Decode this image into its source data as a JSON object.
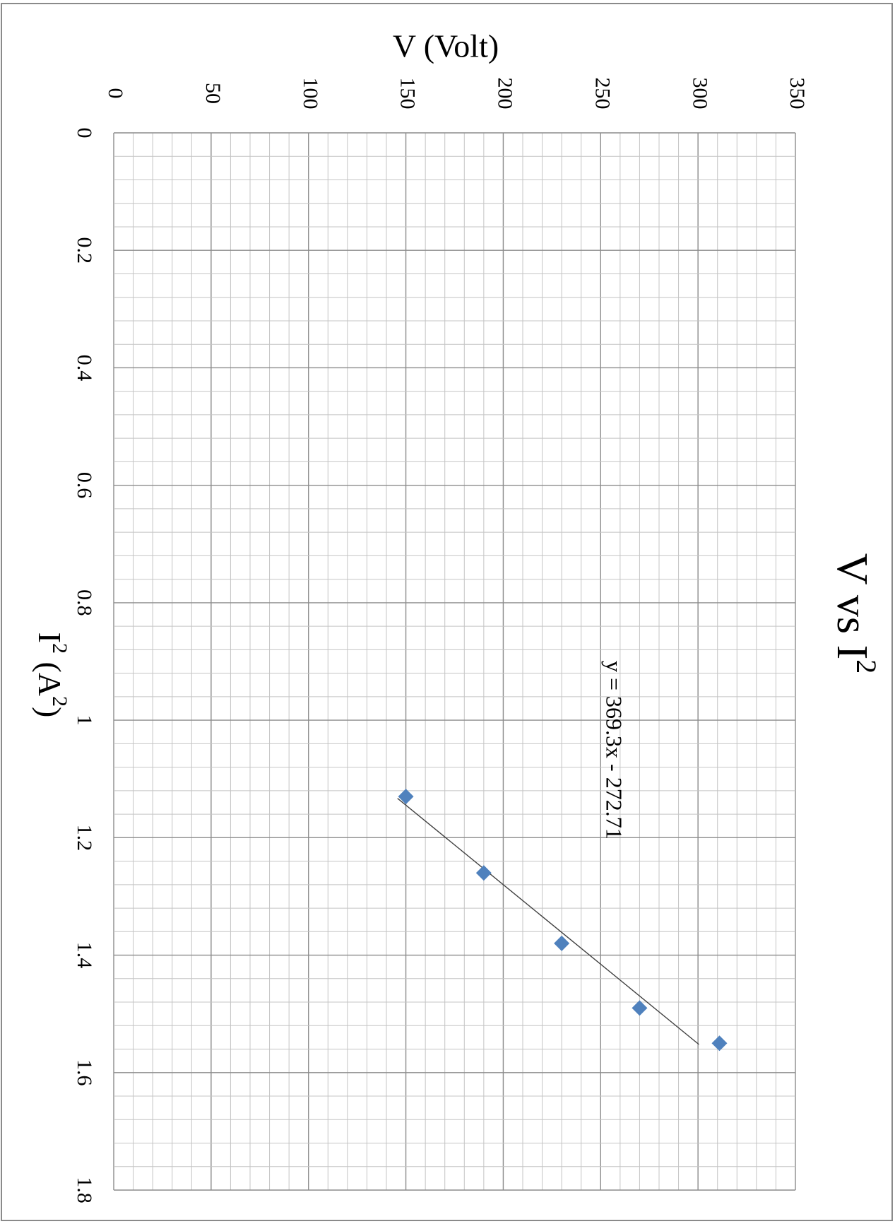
{
  "chart_data": {
    "type": "scatter",
    "title": "V vs I",
    "title_sup": "2",
    "xlabel_main": "I",
    "xlabel_sup1": "2",
    "xlabel_rest": " (A",
    "xlabel_sup2": "2",
    "xlabel_end": ")",
    "ylabel": "V (Volt)",
    "xlim": [
      0,
      1.8
    ],
    "ylim": [
      0,
      350
    ],
    "x_ticks": [
      "0",
      "0.2",
      "0.4",
      "0.6",
      "0.8",
      "1",
      "1.2",
      "1.4",
      "1.6",
      "1.8"
    ],
    "y_ticks": [
      "0",
      "50",
      "100",
      "150",
      "200",
      "250",
      "300",
      "350"
    ],
    "x_tick_values": [
      0,
      0.2,
      0.4,
      0.6,
      0.8,
      1.0,
      1.2,
      1.4,
      1.6,
      1.8
    ],
    "y_tick_values": [
      0,
      50,
      100,
      150,
      200,
      250,
      300,
      350
    ],
    "x_minor_step": 0.04,
    "y_minor_step": 10,
    "grid": true,
    "orientation": "rotated 90° clockwise",
    "series": [
      {
        "x": [
          1.13,
          1.26,
          1.38,
          1.49,
          1.55
        ],
        "y": [
          150,
          190,
          230,
          270,
          311
        ],
        "color": "#4f81bd",
        "marker": "diamond"
      }
    ],
    "trendline": {
      "equation_label": "y = 369.3x - 272.71",
      "slope": 369.3,
      "intercept": -272.71,
      "x_range": [
        1.133,
        1.552
      ],
      "color": "#404040"
    }
  }
}
